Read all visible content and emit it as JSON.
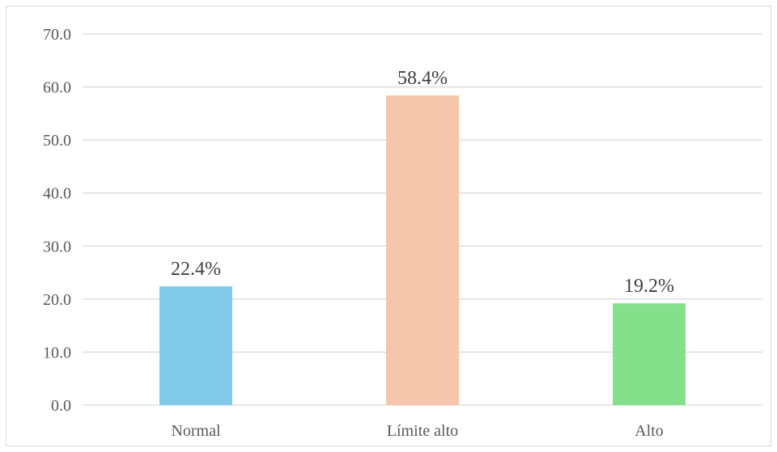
{
  "chart_data": {
    "type": "bar",
    "title": "",
    "xlabel": "",
    "ylabel": "",
    "categories": [
      "Normal",
      "Límite alto",
      "Alto"
    ],
    "values": [
      22.4,
      58.4,
      19.2
    ],
    "data_labels": [
      "22.4%",
      "58.4%",
      "19.2%"
    ],
    "colors": [
      "#82caea",
      "#f5c6ab",
      "#85e08c"
    ],
    "ylim": [
      0,
      70
    ],
    "yticks": [
      0,
      10,
      20,
      30,
      40,
      50,
      60,
      70
    ],
    "ytick_labels": [
      "0.0",
      "10.0",
      "20.0",
      "30.0",
      "40.0",
      "50.0",
      "60.0",
      "70.0"
    ],
    "grid": true,
    "legend": "none"
  }
}
